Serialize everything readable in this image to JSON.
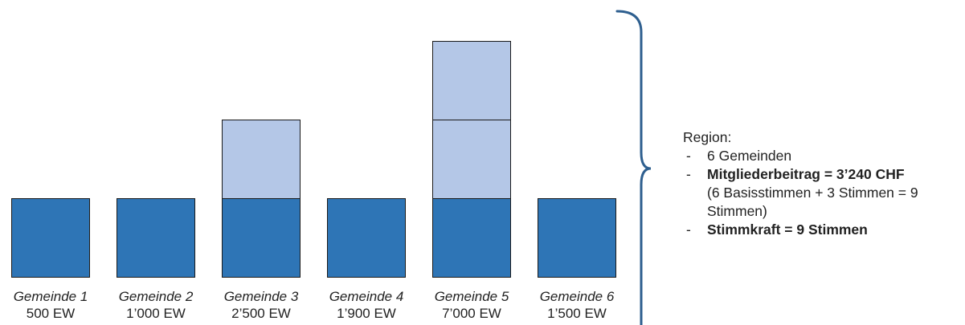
{
  "communities": [
    {
      "name": "Gemeinde 1",
      "population": "500 EW",
      "votes": 1
    },
    {
      "name": "Gemeinde 2",
      "population": "1’000 EW",
      "votes": 1
    },
    {
      "name": "Gemeinde 3",
      "population": "2’500 EW",
      "votes": 2
    },
    {
      "name": "Gemeinde 4",
      "population": "1’900 EW",
      "votes": 1
    },
    {
      "name": "Gemeinde 5",
      "population": "7’000 EW",
      "votes": 3
    },
    {
      "name": "Gemeinde 6",
      "population": "1’500 EW",
      "votes": 1
    }
  ],
  "colors": {
    "base_vote": "#2e75b6",
    "additional_vote": "#b4c7e7",
    "brace": "#2e5f8f"
  },
  "summary": {
    "heading": "Region:",
    "items": [
      {
        "dash": "-",
        "text": "6 Gemeinden",
        "bold": false
      },
      {
        "dash": "-",
        "text": "Mitgliederbeitrag = 3’240 CHF",
        "bold": true,
        "sub": "(6 Basisstimmen + 3 Stimmen = 9 Stimmen)"
      },
      {
        "dash": "-",
        "text": "Stimmkraft = 9 Stimmen",
        "bold": true
      }
    ]
  }
}
